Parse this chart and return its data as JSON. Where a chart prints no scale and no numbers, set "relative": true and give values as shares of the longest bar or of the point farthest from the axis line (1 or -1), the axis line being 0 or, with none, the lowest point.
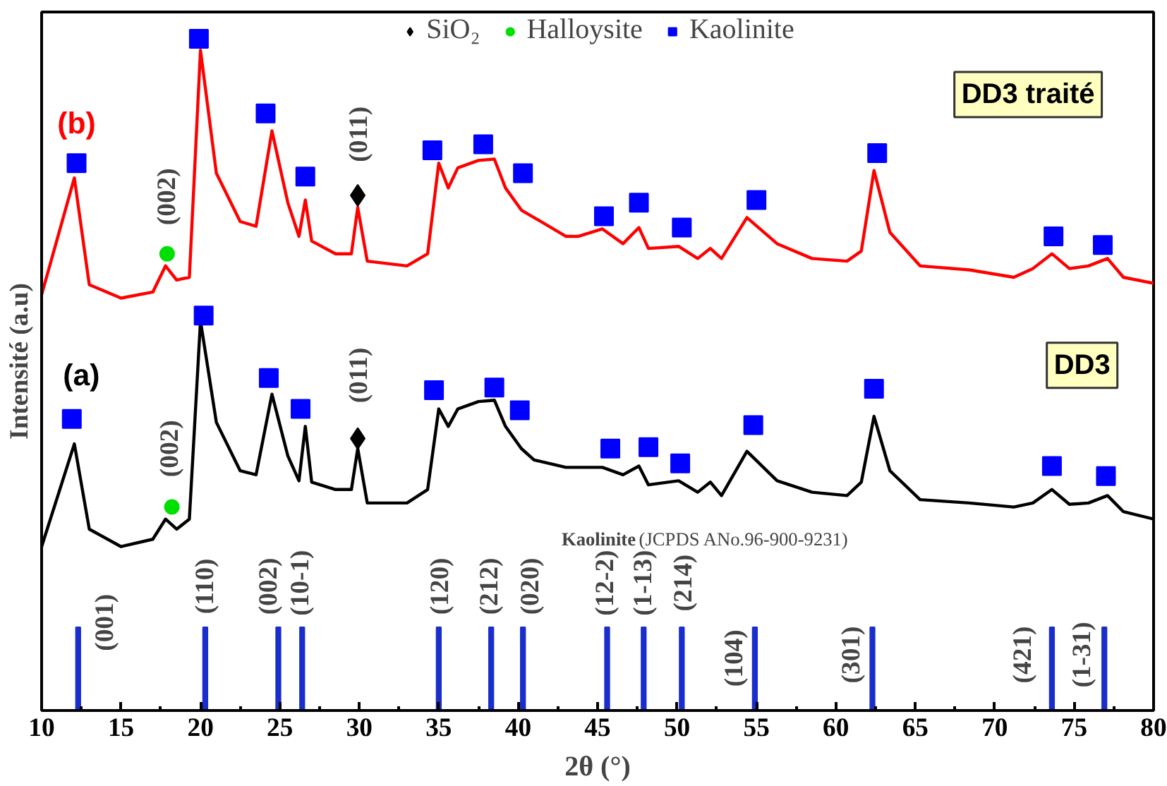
{
  "chart_data": {
    "type": "line",
    "xlabel": "2θ (°)",
    "ylabel": "Intensité (a.u)",
    "relative": true,
    "xlim": [
      10,
      80
    ],
    "xticks": [
      10,
      {
        "value": 12.5,
        "label": null
      },
      15,
      {
        "value": 17.5,
        "label": null
      },
      20,
      {
        "value": 22.5,
        "label": null
      },
      25,
      {
        "value": 27.5,
        "label": null
      },
      30,
      {
        "value": 32.5,
        "label": null
      },
      35,
      {
        "value": 37.5,
        "label": null
      },
      40,
      {
        "value": 42.5,
        "label": null
      },
      45,
      {
        "value": 47.5,
        "label": null
      },
      50,
      {
        "value": 52.5,
        "label": null
      },
      55,
      {
        "value": 57.5,
        "label": null
      },
      60,
      {
        "value": 62.5,
        "label": null
      },
      65,
      {
        "value": 67.5,
        "label": null
      },
      70,
      {
        "value": 72.5,
        "label": null
      },
      75,
      {
        "value": 77.5,
        "label": null
      },
      80
    ],
    "grid": false,
    "legend": "top",
    "line_style": "solid",
    "x": [
      10,
      12.06,
      13,
      15,
      17,
      17.8,
      18.5,
      19.3,
      20,
      21,
      22.5,
      23.5,
      24.5,
      25.5,
      26.2,
      26.6,
      27,
      28.5,
      29.5,
      29.9,
      30.5,
      33,
      34.3,
      35,
      35.6,
      36.2,
      37.5,
      38.5,
      39.2,
      40.2,
      41,
      43,
      43.8,
      45.3,
      46.6,
      47.6,
      48.2,
      50.1,
      51.3,
      52.1,
      52.8,
      54.4,
      56.3,
      58.5,
      60.7,
      61.6,
      62.4,
      63.4,
      65.3,
      68.4,
      71.2,
      72.4,
      73.6,
      74.7,
      75.9,
      77.1,
      78.1,
      80
    ],
    "series": [
      {
        "color": "#ff0000",
        "values": [
          0.619,
          0.793,
          0.634,
          0.614,
          0.623,
          0.662,
          0.641,
          0.645,
          0.983,
          0.8,
          0.728,
          0.721,
          0.863,
          0.756,
          0.706,
          0.76,
          0.699,
          0.68,
          0.68,
          0.749,
          0.669,
          0.662,
          0.68,
          0.815,
          0.778,
          0.808,
          0.819,
          0.821,
          0.778,
          0.745,
          0.734,
          0.706,
          0.706,
          0.717,
          0.695,
          0.719,
          0.688,
          0.691,
          0.673,
          0.688,
          0.673,
          0.734,
          0.695,
          0.673,
          0.669,
          0.684,
          0.804,
          0.712,
          0.662,
          0.656,
          0.645,
          0.658,
          0.68,
          0.658,
          0.662,
          0.673,
          0.645,
          0.636
        ]
      },
      {
        "color": "#000000",
        "values": [
          0.244,
          0.397,
          0.27,
          0.244,
          0.255,
          0.285,
          0.27,
          0.285,
          0.58,
          0.429,
          0.357,
          0.351,
          0.471,
          0.379,
          0.342,
          0.423,
          0.34,
          0.329,
          0.329,
          0.39,
          0.309,
          0.309,
          0.329,
          0.449,
          0.423,
          0.449,
          0.46,
          0.462,
          0.423,
          0.39,
          0.373,
          0.362,
          0.362,
          0.362,
          0.351,
          0.364,
          0.336,
          0.342,
          0.325,
          0.34,
          0.32,
          0.386,
          0.342,
          0.325,
          0.32,
          0.34,
          0.438,
          0.357,
          0.314,
          0.309,
          0.303,
          0.309,
          0.329,
          0.307,
          0.309,
          0.32,
          0.296,
          0.285
        ]
      },
      {
        "type": "bar",
        "color": "#1a2ecc",
        "x": [
          12.3,
          20.3,
          24.9,
          26.4,
          35.0,
          38.3,
          40.3,
          45.6,
          47.9,
          50.3,
          54.9,
          62.3,
          73.6,
          76.9
        ],
        "values": [
          0.124,
          0.124,
          0.124,
          0.124,
          0.124,
          0.124,
          0.124,
          0.124,
          0.124,
          0.124,
          0.124,
          0.124,
          0.124,
          0.124
        ]
      },
      {
        "type": "scatter",
        "name": "SiO₂",
        "marker": "diamond",
        "color": "#000000",
        "x": [
          29.9,
          29.9
        ],
        "values": [
          0.767,
          0.405
        ]
      },
      {
        "type": "scatter",
        "name": "Halloysite",
        "marker": "circle",
        "color": "#00e000",
        "x": [
          17.9,
          18.2
        ],
        "values": [
          0.68,
          0.303
        ]
      },
      {
        "type": "scatter",
        "name": "Kaolinite",
        "marker": "square",
        "color": "#0000ff",
        "x": [
          12.2,
          19.9,
          24.1,
          26.6,
          34.6,
          37.8,
          40.3,
          45.4,
          47.6,
          50.3,
          55.0,
          62.6,
          73.7,
          76.8,
          11.9,
          20.2,
          24.3,
          26.3,
          34.7,
          38.5,
          40.1,
          45.8,
          48.2,
          50.2,
          54.8,
          62.4,
          73.6,
          77.0
        ],
        "values": [
          0.815,
          1.0,
          0.889,
          0.795,
          0.834,
          0.843,
          0.8,
          0.736,
          0.756,
          0.719,
          0.76,
          0.83,
          0.706,
          0.693,
          0.434,
          0.588,
          0.495,
          0.449,
          0.477,
          0.481,
          0.447,
          0.39,
          0.392,
          0.368,
          0.425,
          0.479,
          0.364,
          0.349
        ]
      }
    ],
    "annotations": [
      "(b)",
      "(a)",
      "DD3 traité",
      "DD3",
      "(002)",
      "(011)",
      "(002)",
      "(011)",
      "Kaolinite",
      "(JCPDS ANo.96-900-9231)",
      "(001)",
      "(110)",
      "(002)",
      "(10-1)",
      "(120)",
      "(212)",
      "(020)",
      "(12-2)",
      "(1-13)",
      "(214)",
      "(104)",
      "(301)",
      "(421)",
      "(1-31)"
    ]
  }
}
